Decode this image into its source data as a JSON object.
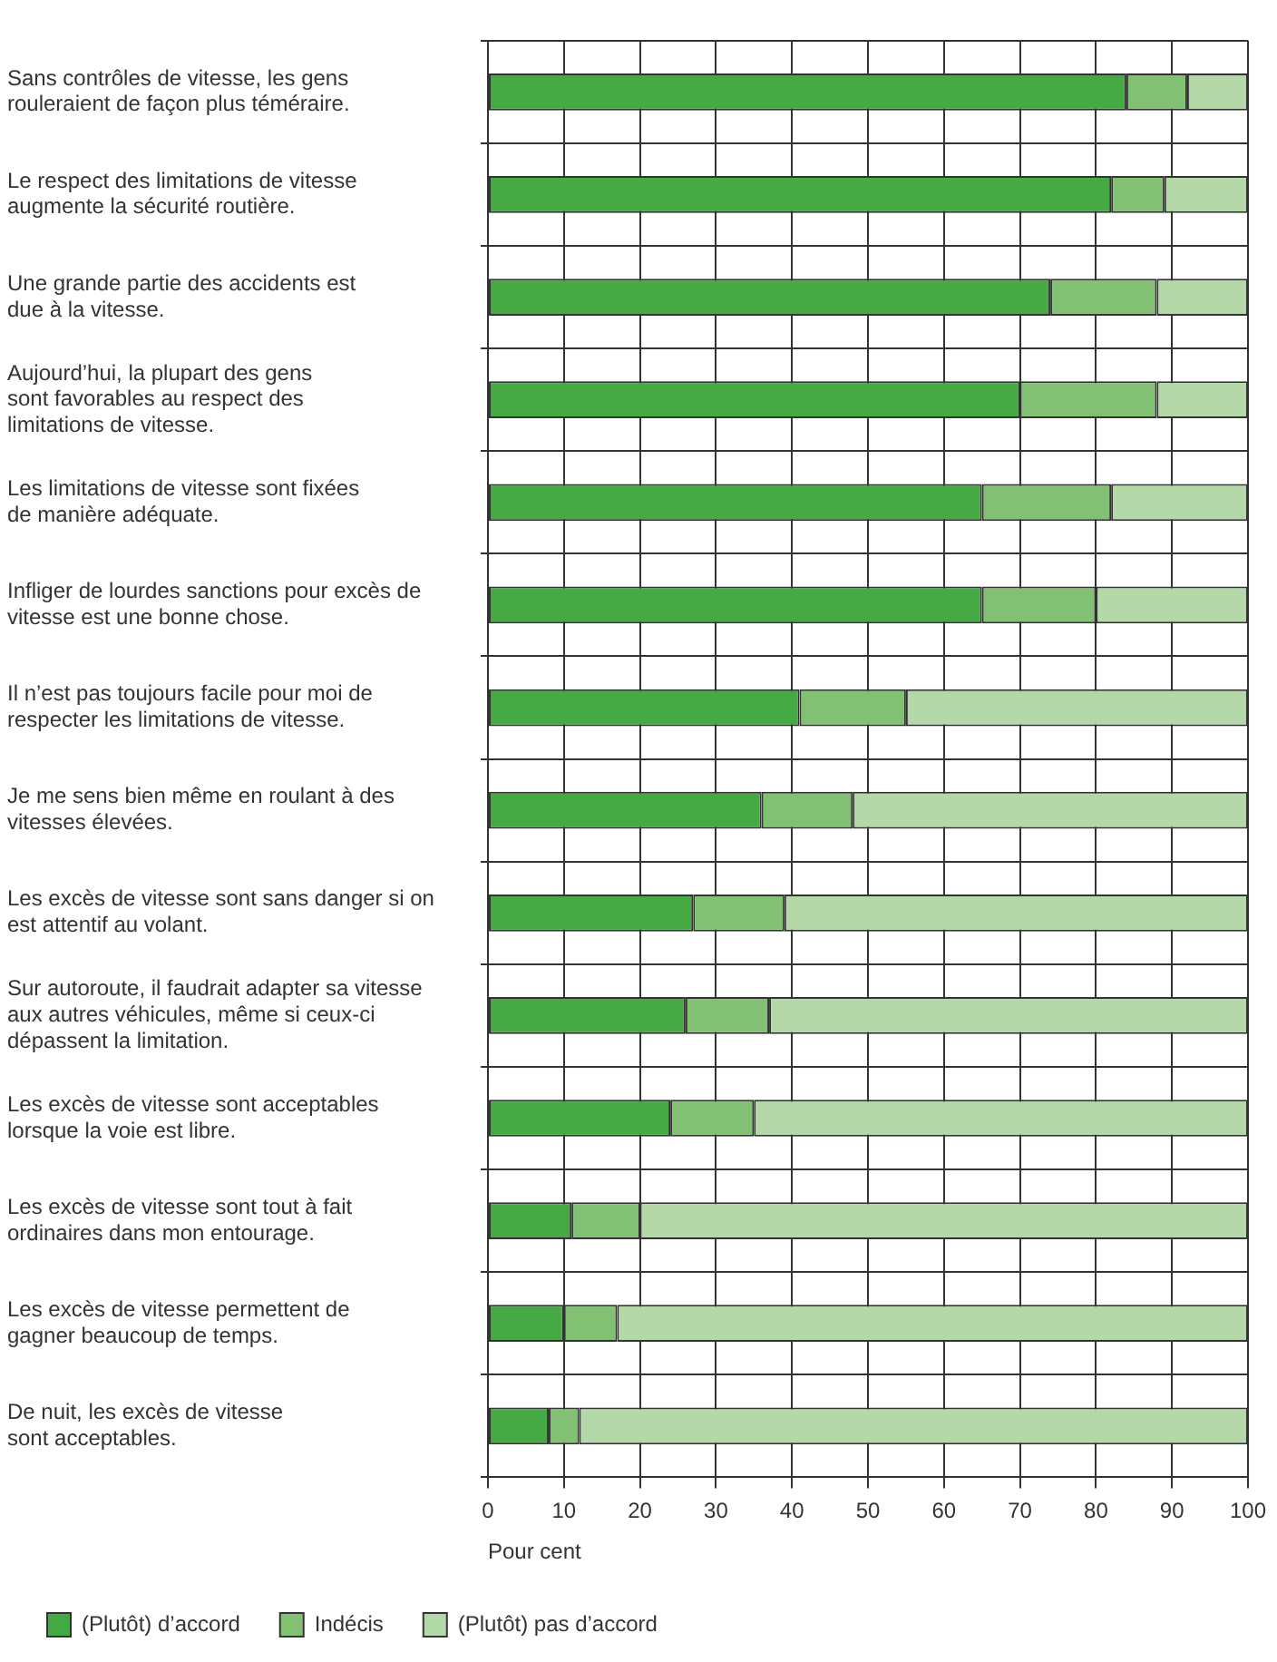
{
  "chart_data": {
    "type": "bar",
    "orientation": "horizontal",
    "stacked": true,
    "xlabel": "Pour cent",
    "categories": [
      "Sans contrôles de vitesse, les gens\nrouleraient de façon plus téméraire.",
      "Le respect des limitations de vitesse\naugmente la sécurité routière.",
      "Une grande partie des accidents est\ndue à la vitesse.",
      "Aujourd’hui, la plupart des gens\nsont favorables au respect des\nlimitations de vitesse.",
      "Les limitations de vitesse sont fixées\nde manière adéquate.",
      "Infliger de lourdes sanctions pour excès de\nvitesse est une bonne chose.",
      "Il n’est pas toujours facile pour moi de\nrespecter les limitations de vitesse.",
      "Je me sens bien même en roulant à des\nvitesses élevées.",
      "Les excès de vitesse sont sans danger si on\nest attentif au volant.",
      "Sur autoroute, il faudrait adapter sa vitesse\naux autres véhicules, même si ceux-ci\ndépassent la limitation.",
      "Les excès de vitesse sont acceptables\nlorsque la voie est libre.",
      "Les excès de vitesse sont tout à fait\nordinaires dans mon entourage.",
      "Les excès de vitesse permettent de\ngagner beaucoup de temps.",
      "De nuit, les excès de vitesse\nsont acceptables."
    ],
    "series": [
      {
        "name": "(Plutôt) d’accord",
        "color": "#46aa44",
        "values": [
          84,
          82,
          74,
          70,
          65,
          65,
          41,
          36,
          27,
          26,
          24,
          11,
          10,
          8
        ]
      },
      {
        "name": "Indécis",
        "color": "#82c073",
        "values": [
          8,
          7,
          14,
          18,
          17,
          15,
          14,
          12,
          12,
          11,
          11,
          9,
          7,
          4
        ]
      },
      {
        "name": "(Plutôt) pas d’accord",
        "color": "#b5d8a9",
        "values": [
          8,
          11,
          12,
          12,
          18,
          20,
          45,
          52,
          61,
          63,
          65,
          80,
          83,
          88
        ]
      }
    ],
    "xlim": [
      0,
      100
    ],
    "xticks": [
      0,
      10,
      20,
      30,
      40,
      50,
      60,
      70,
      80,
      90,
      100
    ],
    "grid": true,
    "legend": "bottom"
  }
}
